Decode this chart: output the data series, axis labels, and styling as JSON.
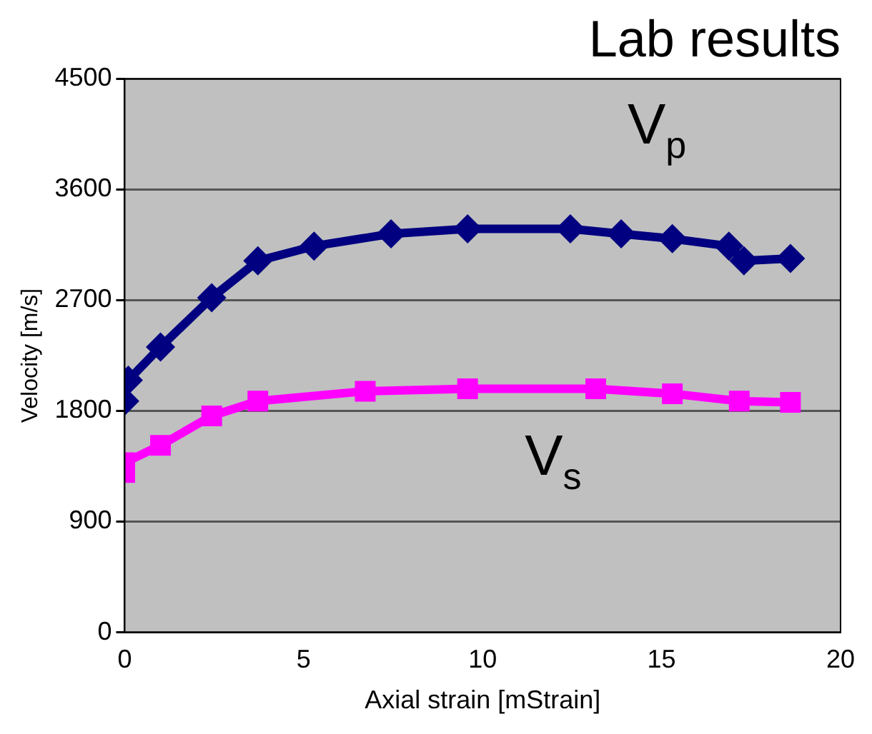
{
  "chart_data": {
    "type": "line",
    "title": "Lab results",
    "xlabel": "Axial strain [mStrain]",
    "ylabel": "Velocity [m/s]",
    "xlim": [
      0,
      20
    ],
    "xticks": [
      0,
      5,
      10,
      15,
      20
    ],
    "ylim": [
      0,
      4500
    ],
    "yticks": [
      0,
      900,
      1800,
      2700,
      3600,
      4500
    ],
    "grid": "y",
    "legend": false,
    "series": [
      {
        "name": "V$_{p}$",
        "color": "#000080",
        "marker": "diamond",
        "x": [
          0,
          0.1,
          1.0,
          2.43,
          3.72,
          5.29,
          7.44,
          9.58,
          12.45,
          13.87,
          15.3,
          16.88,
          17.3,
          18.6
        ],
        "values": [
          1880,
          2050,
          2320,
          2720,
          3020,
          3140,
          3240,
          3280,
          3280,
          3240,
          3200,
          3140,
          3020,
          3040
        ]
      },
      {
        "name": "V$_{s}$",
        "color": "#ff00ff",
        "marker": "square",
        "x": [
          0,
          0,
          1.0,
          2.43,
          3.72,
          6.72,
          9.58,
          13.16,
          15.3,
          17.17,
          18.6
        ],
        "values": [
          1300,
          1380,
          1520,
          1760,
          1880,
          1960,
          1980,
          1980,
          1940,
          1880,
          1870
        ]
      }
    ]
  }
}
